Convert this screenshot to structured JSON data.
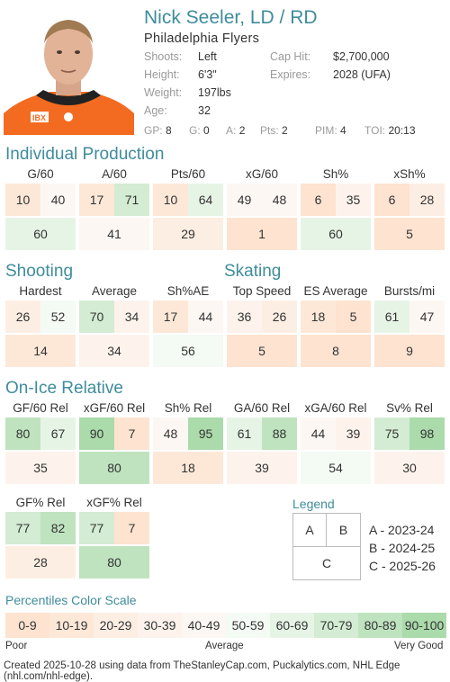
{
  "player": {
    "name": "Nick Seeler, LD / RD",
    "team": "Philadelphia Flyers",
    "shoots_label": "Shoots:",
    "shoots": "Left",
    "height_label": "Height:",
    "height": "6'3\"",
    "weight_label": "Weight:",
    "weight": "197lbs",
    "age_label": "Age:",
    "age": "32",
    "caphit_label": "Cap Hit:",
    "caphit": "$2,700,000",
    "expires_label": "Expires:",
    "expires": "2028 (UFA)"
  },
  "stats": [
    {
      "k": "GP:",
      "v": "8"
    },
    {
      "k": "G:",
      "v": "0"
    },
    {
      "k": "A:",
      "v": "2"
    },
    {
      "k": "Pts:",
      "v": "2"
    },
    {
      "k": "PIM:",
      "v": "4"
    },
    {
      "k": "TOI:",
      "v": "20:13"
    }
  ],
  "sections": {
    "individual": "Individual Production",
    "shooting": "Shooting",
    "skating": "Skating",
    "onice": "On-Ice Relative"
  },
  "metrics": [
    {
      "label": "G/60",
      "a": 10,
      "b": 40,
      "c": 60
    },
    {
      "label": "A/60",
      "a": 17,
      "b": 71,
      "c": 41
    },
    {
      "label": "Pts/60",
      "a": 10,
      "b": 64,
      "c": 29
    },
    {
      "label": "xG/60",
      "a": 49,
      "b": 48,
      "c": 1
    },
    {
      "label": "Sh%",
      "a": 6,
      "b": 35,
      "c": 60
    },
    {
      "label": "xSh%",
      "a": 6,
      "b": 28,
      "c": 5
    },
    {
      "label": "Hardest",
      "a": 26,
      "b": 52,
      "c": 14
    },
    {
      "label": "Average",
      "a": 70,
      "b": 34,
      "c": 34
    },
    {
      "label": "Sh%AE",
      "a": 17,
      "b": 44,
      "c": 56
    },
    {
      "label": "Top Speed",
      "a": 36,
      "b": 26,
      "c": 5
    },
    {
      "label": "ES Average",
      "a": 18,
      "b": 5,
      "c": 8
    },
    {
      "label": "Bursts/mi",
      "a": 61,
      "b": 47,
      "c": 9
    },
    {
      "label": "GF/60 Rel",
      "a": 80,
      "b": 67,
      "c": 35
    },
    {
      "label": "xGF/60 Rel",
      "a": 90,
      "b": 7,
      "c": 80
    },
    {
      "label": "Sh% Rel",
      "a": 48,
      "b": 95,
      "c": 18
    },
    {
      "label": "GA/60 Rel",
      "a": 61,
      "b": 88,
      "c": 39
    },
    {
      "label": "xGA/60 Rel",
      "a": 44,
      "b": 39,
      "c": 54
    },
    {
      "label": "Sv% Rel",
      "a": 75,
      "b": 98,
      "c": 30
    },
    {
      "label": "GF% Rel",
      "a": 77,
      "b": 82,
      "c": 28
    },
    {
      "label": "xGF% Rel",
      "a": 77,
      "b": 7,
      "c": 80
    }
  ],
  "legend": {
    "title": "Legend",
    "a": "A",
    "b": "B",
    "c": "C",
    "a_text": "A - 2023-24",
    "b_text": "B - 2024-25",
    "c_text": "C - 2025-26"
  },
  "scale": {
    "title": "Percentiles Color Scale",
    "ranges": [
      "0-9",
      "10-19",
      "20-29",
      "30-39",
      "40-49",
      "50-59",
      "60-69",
      "70-79",
      "80-89",
      "90-100"
    ],
    "colors": [
      "#fde3d0",
      "#fde8d8",
      "#fdeee3",
      "#fdf3ec",
      "#fdf7f3",
      "#f4faf4",
      "#e6f4e6",
      "#d3ecd3",
      "#bfe3bf",
      "#abdbab"
    ],
    "poor": "Poor",
    "average": "Average",
    "very_good": "Very Good"
  },
  "footer": "Created 2025-10-28 using data from TheStanleyCap.com, Puckalytics.com, NHL Edge (nhl.com/nhl-edge)."
}
